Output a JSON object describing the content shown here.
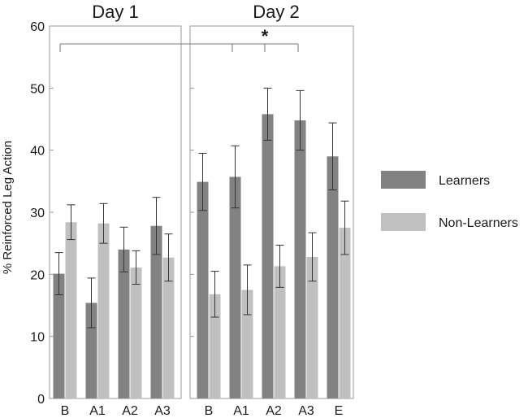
{
  "chart_data": {
    "type": "bar",
    "ylabel": "% Reinforced Leg Action",
    "ylim": [
      0,
      60
    ],
    "yticks": [
      0,
      10,
      20,
      30,
      40,
      50,
      60
    ],
    "colors": {
      "Learners": "#828282",
      "Non-Learners": "#c0c0c0",
      "frame": "#9a9a9a",
      "error": "#333333"
    },
    "significance": "*",
    "panels": [
      {
        "title": "Day 1",
        "categories": [
          "B",
          "A1",
          "A2",
          "A3"
        ],
        "series": [
          {
            "name": "Learners",
            "values": [
              20.1,
              15.4,
              24.0,
              27.8
            ],
            "errors": [
              3.4,
              4.0,
              3.6,
              4.6
            ]
          },
          {
            "name": "Non-Learners",
            "values": [
              28.4,
              28.2,
              21.1,
              22.7
            ],
            "errors": [
              2.8,
              3.2,
              2.7,
              3.8
            ]
          }
        ]
      },
      {
        "title": "Day 2",
        "categories": [
          "B",
          "A1",
          "A2",
          "A3",
          "E"
        ],
        "series": [
          {
            "name": "Learners",
            "values": [
              34.9,
              35.7,
              45.8,
              44.8,
              39.0
            ],
            "errors": [
              4.6,
              5.0,
              4.2,
              4.8,
              5.4
            ]
          },
          {
            "name": "Non-Learners",
            "values": [
              16.8,
              17.5,
              21.3,
              22.8,
              27.5
            ],
            "errors": [
              3.7,
              4.0,
              3.4,
              3.9,
              4.3
            ]
          }
        ]
      }
    ],
    "legend": [
      {
        "label": "Learners"
      },
      {
        "label": "Non-Learners"
      }
    ]
  }
}
